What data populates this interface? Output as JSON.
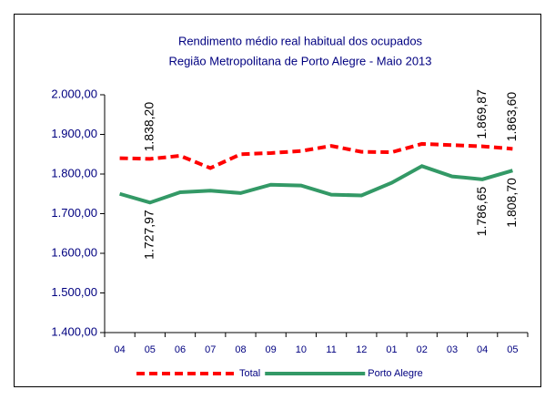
{
  "chart_data": {
    "type": "line",
    "title": "Rendimento médio real habitual dos ocupados",
    "subtitle": "Região Metropolitana de Porto Alegre - Maio 2013",
    "categories": [
      "04",
      "05",
      "06",
      "07",
      "08",
      "09",
      "10",
      "11",
      "12",
      "01",
      "02",
      "03",
      "04",
      "05"
    ],
    "series": [
      {
        "name": "Total",
        "color": "#ff0000",
        "dash": true,
        "values": [
          1840,
          1838.2,
          1846,
          1815,
          1850,
          1853,
          1858,
          1871,
          1856,
          1855,
          1876,
          1873,
          1869.87,
          1863.6
        ],
        "value_labels": [
          null,
          "1.838,20",
          null,
          null,
          null,
          null,
          null,
          null,
          null,
          null,
          null,
          null,
          "1.869,87",
          "1.863,60"
        ]
      },
      {
        "name": "Porto Alegre",
        "color": "#339966",
        "dash": false,
        "values": [
          1750,
          1727.97,
          1754,
          1758,
          1752,
          1773,
          1771,
          1748,
          1746,
          1778,
          1820,
          1794,
          1786.65,
          1808.7
        ],
        "value_labels": [
          null,
          "1.727,97",
          null,
          null,
          null,
          null,
          null,
          null,
          null,
          null,
          null,
          null,
          "1.786,65",
          "1.808,70"
        ]
      }
    ],
    "ylim": [
      1400,
      2000
    ],
    "yticks": [
      {
        "value": 1400,
        "label": "1.400,00"
      },
      {
        "value": 1500,
        "label": "1.500,00"
      },
      {
        "value": 1600,
        "label": "1.600,00"
      },
      {
        "value": 1700,
        "label": "1.700,00"
      },
      {
        "value": 1800,
        "label": "1.800,00"
      },
      {
        "value": 1900,
        "label": "1.900,00"
      },
      {
        "value": 2000,
        "label": "2.000,00"
      }
    ],
    "legend": "bottom"
  }
}
